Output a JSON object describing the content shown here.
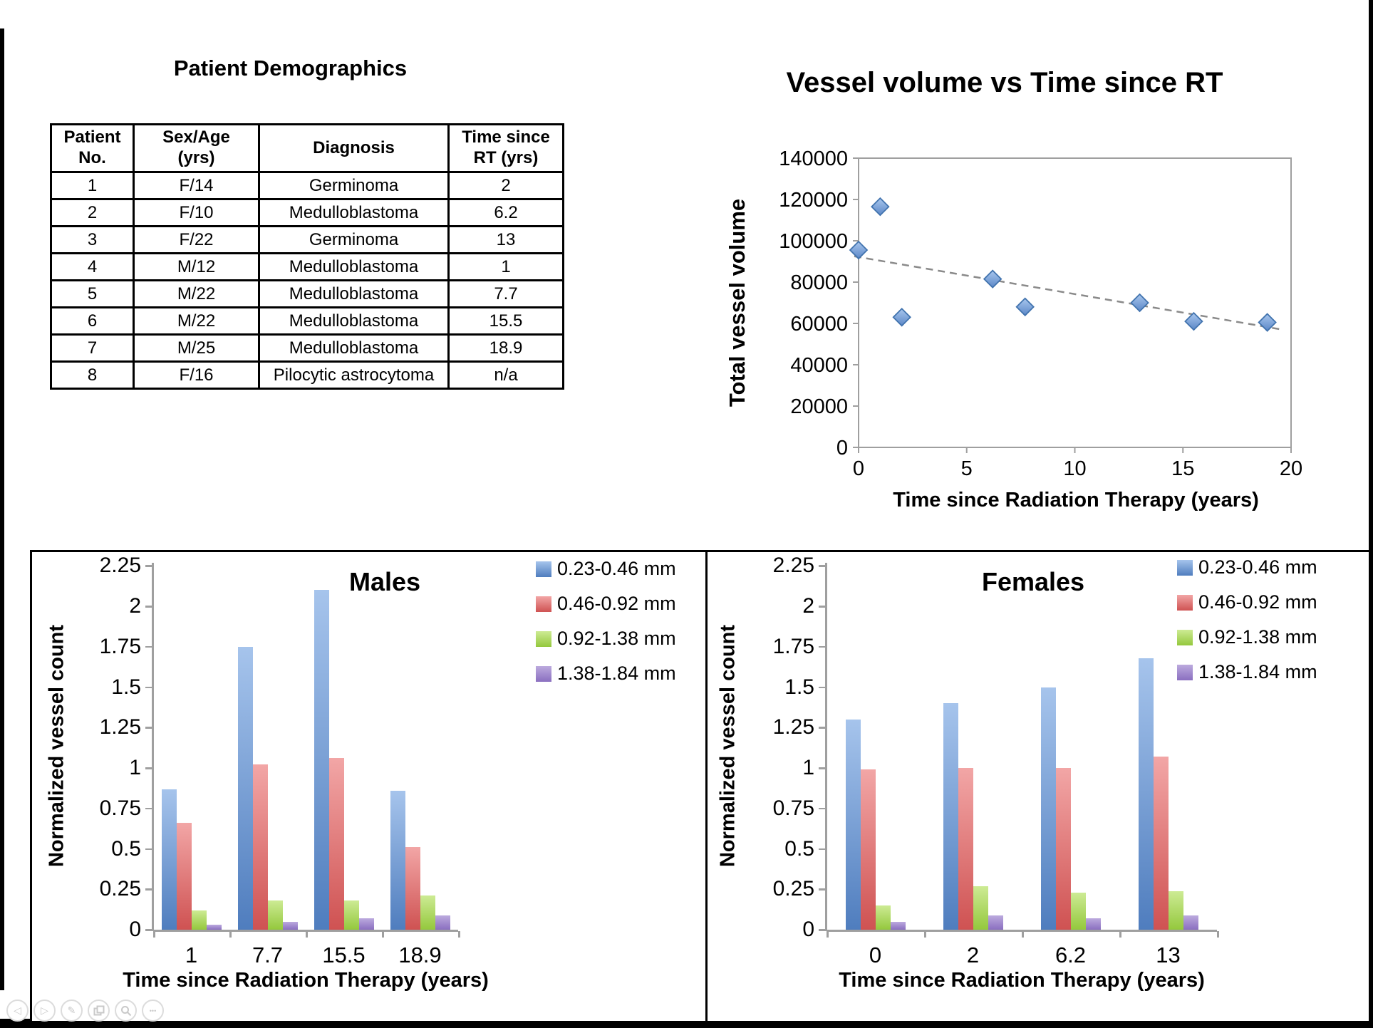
{
  "toolbar": {
    "icons": [
      {
        "name": "previous-slide",
        "glyph": "left-triangle"
      },
      {
        "name": "next-slide",
        "glyph": "right-triangle"
      },
      {
        "name": "pen-tool",
        "glyph": "pen"
      },
      {
        "name": "slide-navigator",
        "glyph": "slides"
      },
      {
        "name": "zoom-tool",
        "glyph": "magnifier"
      },
      {
        "name": "more-options",
        "glyph": "ellipsis"
      }
    ]
  },
  "colors": {
    "axis_gray": "#9f9f9f",
    "trendline_gray": "#8a8a8a",
    "scatter_marker_fill": "#7da7dc",
    "scatter_marker_fill_light": "#a9c7ee",
    "scatter_marker_stroke": "#4173ae"
  },
  "chart_data": [
    {
      "type": "table",
      "title": "Patient Demographics",
      "headers": [
        "Patient\nNo.",
        "Sex/Age\n(yrs)",
        "Diagnosis",
        "Time since\nRT (yrs)"
      ],
      "rows": [
        [
          "1",
          "F/14",
          "Germinoma",
          "2"
        ],
        [
          "2",
          "F/10",
          "Medulloblastoma",
          "6.2"
        ],
        [
          "3",
          "F/22",
          "Germinoma",
          "13"
        ],
        [
          "4",
          "M/12",
          "Medulloblastoma",
          "1"
        ],
        [
          "5",
          "M/22",
          "Medulloblastoma",
          "7.7"
        ],
        [
          "6",
          "M/22",
          "Medulloblastoma",
          "15.5"
        ],
        [
          "7",
          "M/25",
          "Medulloblastoma",
          "18.9"
        ],
        [
          "8",
          "F/16",
          "Pilocytic astrocytoma",
          "n/a"
        ]
      ]
    },
    {
      "type": "scatter",
      "title": "Vessel volume vs Time since RT",
      "xlabel": "Time since Radiation Therapy (years)",
      "ylabel": "Total vessel volume",
      "xlim": [
        0,
        20
      ],
      "ylim": [
        0,
        140000
      ],
      "xticks": [
        0,
        5,
        10,
        15,
        20
      ],
      "yticks": [
        0,
        20000,
        40000,
        60000,
        80000,
        100000,
        120000,
        140000
      ],
      "grid": false,
      "legend": false,
      "marker": "diamond",
      "points": [
        {
          "x": 0,
          "y": 95500
        },
        {
          "x": 1,
          "y": 116500
        },
        {
          "x": 2,
          "y": 63000
        },
        {
          "x": 6.2,
          "y": 81500
        },
        {
          "x": 7.7,
          "y": 68000
        },
        {
          "x": 13,
          "y": 70000
        },
        {
          "x": 15.5,
          "y": 61000
        },
        {
          "x": 18.9,
          "y": 60500
        }
      ],
      "trendline": {
        "style": "dashed",
        "x1": -0.2,
        "y1": 92500,
        "x2": 19.6,
        "y2": 57000
      }
    },
    {
      "type": "bar",
      "title": "Males",
      "xlabel": "Time since Radiation Therapy (years)",
      "ylabel": "Normalized vessel count",
      "ylim": [
        0,
        2.25
      ],
      "ytick_step": 0.25,
      "legend_position": "top-right",
      "categories": [
        "1",
        "7.7",
        "15.5",
        "18.9"
      ],
      "series": [
        {
          "name": "0.23-0.46 mm",
          "color": "#4f7dbe",
          "color_light": "#a6c4ec",
          "values": [
            0.87,
            1.75,
            2.1,
            0.86
          ]
        },
        {
          "name": "0.46-0.92 mm",
          "color": "#cf5252",
          "color_light": "#f2a6a6",
          "values": [
            0.66,
            1.02,
            1.06,
            0.51
          ]
        },
        {
          "name": "0.92-1.38 mm",
          "color": "#94c83d",
          "color_light": "#cdeb94",
          "values": [
            0.12,
            0.18,
            0.18,
            0.21
          ]
        },
        {
          "name": "1.38-1.84 mm",
          "color": "#8a6fc0",
          "color_light": "#bcaade",
          "values": [
            0.03,
            0.05,
            0.07,
            0.09
          ]
        }
      ]
    },
    {
      "type": "bar",
      "title": "Females",
      "xlabel": "Time since Radiation Therapy (years)",
      "ylabel": "Normalized vessel count",
      "ylim": [
        0,
        2.25
      ],
      "ytick_step": 0.25,
      "legend_position": "top-right",
      "categories": [
        "0",
        "2",
        "6.2",
        "13"
      ],
      "series": [
        {
          "name": "0.23-0.46 mm",
          "color": "#4f7dbe",
          "color_light": "#a6c4ec",
          "values": [
            1.3,
            1.4,
            1.5,
            1.68
          ]
        },
        {
          "name": "0.46-0.92 mm",
          "color": "#cf5252",
          "color_light": "#f2a6a6",
          "values": [
            0.99,
            1.0,
            1.0,
            1.07
          ]
        },
        {
          "name": "0.92-1.38 mm",
          "color": "#94c83d",
          "color_light": "#cdeb94",
          "values": [
            0.15,
            0.27,
            0.23,
            0.24
          ]
        },
        {
          "name": "1.38-1.84 mm",
          "color": "#8a6fc0",
          "color_light": "#bcaade",
          "values": [
            0.05,
            0.09,
            0.07,
            0.09
          ]
        }
      ]
    }
  ]
}
